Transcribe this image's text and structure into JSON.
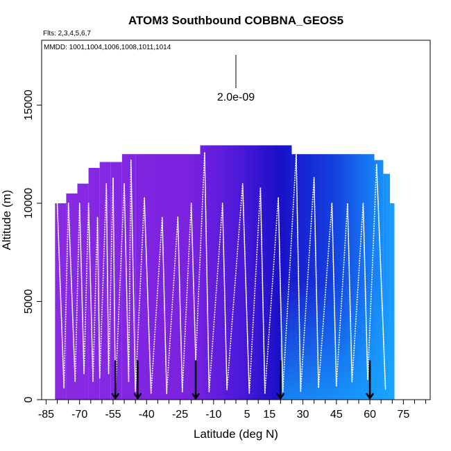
{
  "chart_data": {
    "type": "heatmap",
    "title": "ATOM3 Southbound COBBNA_GEOS5",
    "flights_note": "Flts: 2,3,4,5,6,7",
    "dates_note": "MMDD: 1001,1004,1006,1008,1011,1014",
    "xlabel": "Latitude (deg N)",
    "ylabel": "Altitude (m)",
    "xlim": [
      -87,
      87
    ],
    "ylim": [
      0,
      18300
    ],
    "x_ticks": [
      -85,
      -70,
      -55,
      -40,
      -25,
      -10,
      5,
      15,
      30,
      45,
      60,
      75
    ],
    "x_minor_ticks": [
      -80,
      -75,
      -65,
      -60,
      -50,
      -45,
      -35,
      -30,
      -20,
      -15,
      -5,
      0,
      10,
      20,
      25,
      35,
      40,
      50,
      55,
      65,
      70,
      80,
      85
    ],
    "y_ticks": [
      0,
      5000,
      10000,
      15000
    ],
    "scale_bar_label": "2.0e-09",
    "scale_bar_value": 2e-09,
    "colors": {
      "low": "#8a2be2",
      "mid": "#1a10c8",
      "high": "#1aa0ff",
      "track": "#ffffff"
    },
    "curtain_columns": [
      {
        "lat_range": [
          -81,
          -76
        ],
        "top": 10000
      },
      {
        "lat_range": [
          -76,
          -71
        ],
        "top": 10500
      },
      {
        "lat_range": [
          -71,
          -66
        ],
        "top": 11000
      },
      {
        "lat_range": [
          -66,
          -61
        ],
        "top": 11800
      },
      {
        "lat_range": [
          -61,
          -56
        ],
        "top": 12100
      },
      {
        "lat_range": [
          -56,
          -51
        ],
        "top": 12100
      },
      {
        "lat_range": [
          -51,
          -45
        ],
        "top": 12500
      },
      {
        "lat_range": [
          -45,
          -16
        ],
        "top": 12500
      },
      {
        "lat_range": [
          -16,
          25
        ],
        "top": 12950
      },
      {
        "lat_range": [
          25,
          62
        ],
        "top": 12500
      },
      {
        "lat_range": [
          62,
          66
        ],
        "top": 12200
      },
      {
        "lat_range": [
          66,
          69
        ],
        "top": 11500
      },
      {
        "lat_range": [
          69,
          71
        ],
        "top": 10000
      }
    ],
    "profiles": [
      {
        "lat_top": -80,
        "alt_top": 10000,
        "lat_bottom": -77,
        "alt_bottom": 600
      },
      {
        "lat_top": -75,
        "alt_top": 10000,
        "lat_bottom": -72,
        "alt_bottom": 900
      },
      {
        "lat_top": -70,
        "alt_top": 10000,
        "lat_bottom": -68,
        "alt_bottom": 1300
      },
      {
        "lat_top": -66,
        "alt_top": 10000,
        "lat_bottom": -64,
        "alt_bottom": 900
      },
      {
        "lat_top": -62,
        "alt_top": 9300,
        "lat_bottom": -61,
        "alt_bottom": 1100
      },
      {
        "lat_top": -58,
        "alt_top": 11000,
        "lat_bottom": -57,
        "alt_bottom": 1300
      },
      {
        "lat_top": -55,
        "alt_top": 11300,
        "lat_bottom": -54,
        "alt_bottom": 300
      },
      {
        "lat_top": -50,
        "alt_top": 11000,
        "lat_bottom": -48,
        "alt_bottom": 900
      },
      {
        "lat_top": -47,
        "alt_top": 12200,
        "lat_bottom": -45,
        "alt_bottom": 400
      },
      {
        "lat_top": -41,
        "alt_top": 10300,
        "lat_bottom": -38,
        "alt_bottom": 300
      },
      {
        "lat_top": -33,
        "alt_top": 9300,
        "lat_bottom": -31,
        "alt_bottom": 300
      },
      {
        "lat_top": -26,
        "alt_top": 9300,
        "lat_bottom": -24,
        "alt_bottom": 400
      },
      {
        "lat_top": -20,
        "alt_top": 10000,
        "lat_bottom": -18,
        "alt_bottom": 2000
      },
      {
        "lat_top": -14,
        "alt_top": 12600,
        "lat_bottom": -12,
        "alt_bottom": 400
      },
      {
        "lat_top": -6,
        "alt_top": 10000,
        "lat_bottom": -4,
        "alt_bottom": 500
      },
      {
        "lat_top": 3,
        "alt_top": 11000,
        "lat_bottom": 6,
        "alt_bottom": 300
      },
      {
        "lat_top": 11,
        "alt_top": 10800,
        "lat_bottom": 13,
        "alt_bottom": 300
      },
      {
        "lat_top": 19,
        "alt_top": 10300,
        "lat_bottom": 21,
        "alt_bottom": 400
      },
      {
        "lat_top": 27,
        "alt_top": 12500,
        "lat_bottom": 29,
        "alt_bottom": 400
      },
      {
        "lat_top": 35,
        "alt_top": 11300,
        "lat_bottom": 37,
        "alt_bottom": 600
      },
      {
        "lat_top": 43,
        "alt_top": 10000,
        "lat_bottom": 45,
        "alt_bottom": 700
      },
      {
        "lat_top": 50,
        "alt_top": 10000,
        "lat_bottom": 52,
        "alt_bottom": 900
      },
      {
        "lat_top": 57,
        "alt_top": 10000,
        "lat_bottom": 59,
        "alt_bottom": 1000
      },
      {
        "lat_top": 63,
        "alt_top": 12000,
        "lat_bottom": 67,
        "alt_bottom": 500
      }
    ],
    "markers": [
      {
        "lat": -54,
        "alt": 700
      },
      {
        "lat": -44,
        "alt": 700
      },
      {
        "lat": -18,
        "alt": 700
      },
      {
        "lat": 20,
        "alt": 700
      },
      {
        "lat": 60,
        "alt": 700
      }
    ]
  }
}
